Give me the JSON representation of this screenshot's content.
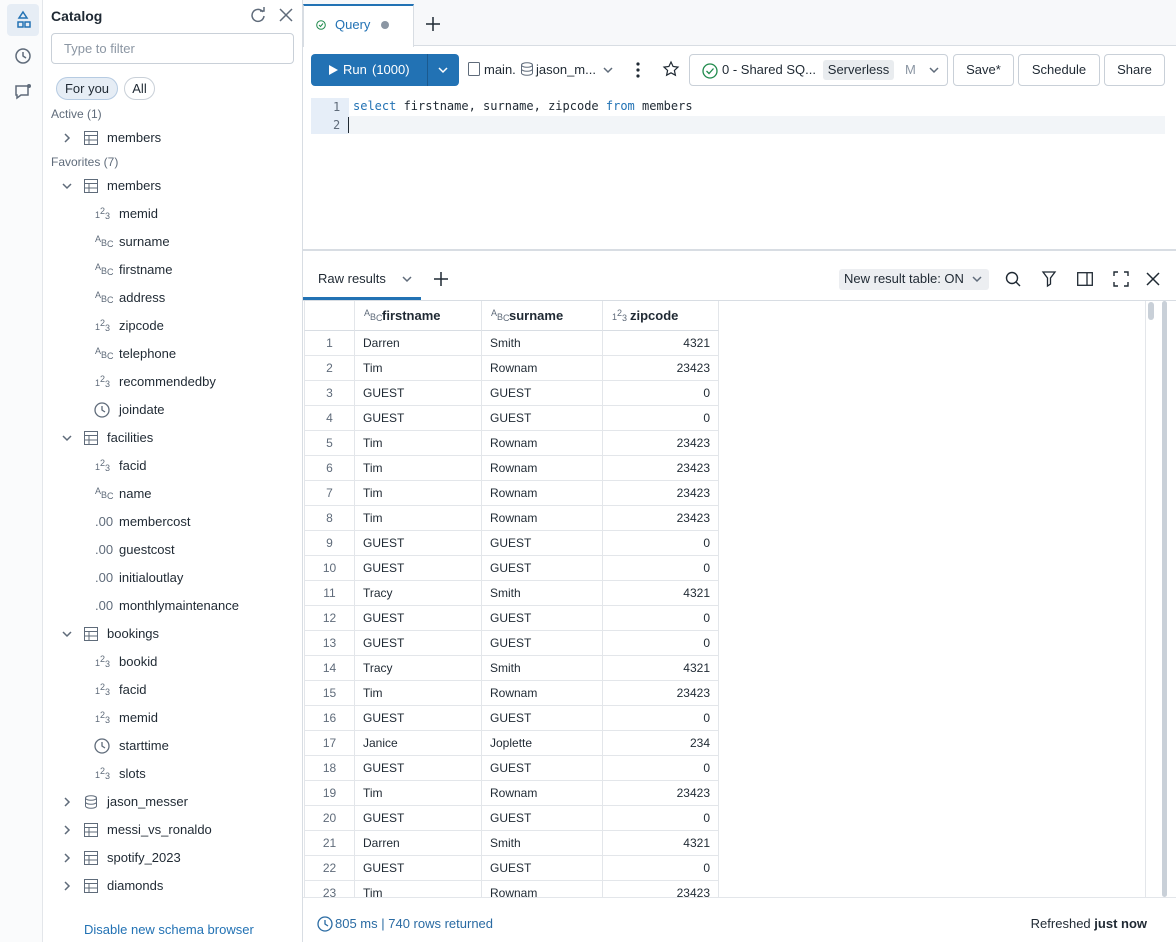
{
  "sidebar": {
    "title": "Catalog",
    "filter_placeholder": "Type to filter",
    "tabs": [
      "For you",
      "All"
    ],
    "active": {
      "label": "Active (1)",
      "items": [
        {
          "name": "members",
          "kind": "table",
          "expanded": false
        }
      ]
    },
    "favorites": {
      "label": "Favorites (7)",
      "items": [
        {
          "name": "members",
          "kind": "table",
          "expanded": true,
          "columns": [
            {
              "name": "memid",
              "icon": "123"
            },
            {
              "name": "surname",
              "icon": "ABC"
            },
            {
              "name": "firstname",
              "icon": "ABC"
            },
            {
              "name": "address",
              "icon": "ABC"
            },
            {
              "name": "zipcode",
              "icon": "123"
            },
            {
              "name": "telephone",
              "icon": "ABC"
            },
            {
              "name": "recommendedby",
              "icon": "123"
            },
            {
              "name": "joindate",
              "kind": "time"
            }
          ]
        },
        {
          "name": "facilities",
          "kind": "table",
          "expanded": true,
          "columns": [
            {
              "name": "facid",
              "icon": "123"
            },
            {
              "name": "name",
              "icon": "ABC"
            },
            {
              "name": "membercost",
              "icon": ".00"
            },
            {
              "name": "guestcost",
              "icon": ".00"
            },
            {
              "name": "initialoutlay",
              "icon": ".00"
            },
            {
              "name": "monthlymaintenance",
              "icon": ".00"
            }
          ]
        },
        {
          "name": "bookings",
          "kind": "table",
          "expanded": true,
          "columns": [
            {
              "name": "bookid",
              "icon": "123"
            },
            {
              "name": "facid",
              "icon": "123"
            },
            {
              "name": "memid",
              "icon": "123"
            },
            {
              "name": "starttime",
              "kind": "time"
            },
            {
              "name": "slots",
              "icon": "123"
            }
          ]
        },
        {
          "name": "jason_messer",
          "kind": "schema",
          "expanded": false
        },
        {
          "name": "messi_vs_ronaldo",
          "kind": "table",
          "expanded": false
        },
        {
          "name": "spotify_2023",
          "kind": "table",
          "expanded": false
        },
        {
          "name": "diamonds",
          "kind": "table",
          "expanded": false
        }
      ]
    },
    "footer_link": "Disable new schema browser"
  },
  "tab": {
    "title": "Query"
  },
  "toolbar": {
    "run": "Run",
    "limit": "(1000)",
    "catalog": "main.",
    "schema": "jason_m...",
    "warehouse": "0 - Shared SQ...",
    "warehouse_type": "Serverless",
    "warehouse_size": "M",
    "buttons": [
      "Save*",
      "Schedule",
      "Share"
    ]
  },
  "editor": {
    "line_numbers": [
      1,
      2
    ],
    "tokens": [
      {
        "text": "select",
        "keyword": true
      },
      {
        "text": " firstname, surname, zipcode ",
        "keyword": false
      },
      {
        "text": "from",
        "keyword": true
      },
      {
        "text": " members",
        "keyword": false
      }
    ]
  },
  "results": {
    "tab": "Raw results",
    "new_table_toggle": "New result table: ON",
    "columns": [
      {
        "name": "firstname",
        "icon": "ABC",
        "align": "left"
      },
      {
        "name": "surname",
        "icon": "ABC",
        "align": "left"
      },
      {
        "name": "zipcode",
        "icon": "123",
        "align": "right"
      }
    ],
    "rows": [
      [
        1,
        "Darren",
        "Smith",
        4321
      ],
      [
        2,
        "Tim",
        "Rownam",
        23423
      ],
      [
        3,
        "GUEST",
        "GUEST",
        0
      ],
      [
        4,
        "GUEST",
        "GUEST",
        0
      ],
      [
        5,
        "Tim",
        "Rownam",
        23423
      ],
      [
        6,
        "Tim",
        "Rownam",
        23423
      ],
      [
        7,
        "Tim",
        "Rownam",
        23423
      ],
      [
        8,
        "Tim",
        "Rownam",
        23423
      ],
      [
        9,
        "GUEST",
        "GUEST",
        0
      ],
      [
        10,
        "GUEST",
        "GUEST",
        0
      ],
      [
        11,
        "Tracy",
        "Smith",
        4321
      ],
      [
        12,
        "GUEST",
        "GUEST",
        0
      ],
      [
        13,
        "GUEST",
        "GUEST",
        0
      ],
      [
        14,
        "Tracy",
        "Smith",
        4321
      ],
      [
        15,
        "Tim",
        "Rownam",
        23423
      ],
      [
        16,
        "GUEST",
        "GUEST",
        0
      ],
      [
        17,
        "Janice",
        "Joplette",
        234
      ],
      [
        18,
        "GUEST",
        "GUEST",
        0
      ],
      [
        19,
        "Tim",
        "Rownam",
        23423
      ],
      [
        20,
        "GUEST",
        "GUEST",
        0
      ],
      [
        21,
        "Darren",
        "Smith",
        4321
      ],
      [
        22,
        "GUEST",
        "GUEST",
        0
      ],
      [
        23,
        "Tim",
        "Rownam",
        23423
      ]
    ],
    "stats": "805 ms | 740 rows returned",
    "refreshed": "Refreshed",
    "refreshed_when": "just now"
  }
}
